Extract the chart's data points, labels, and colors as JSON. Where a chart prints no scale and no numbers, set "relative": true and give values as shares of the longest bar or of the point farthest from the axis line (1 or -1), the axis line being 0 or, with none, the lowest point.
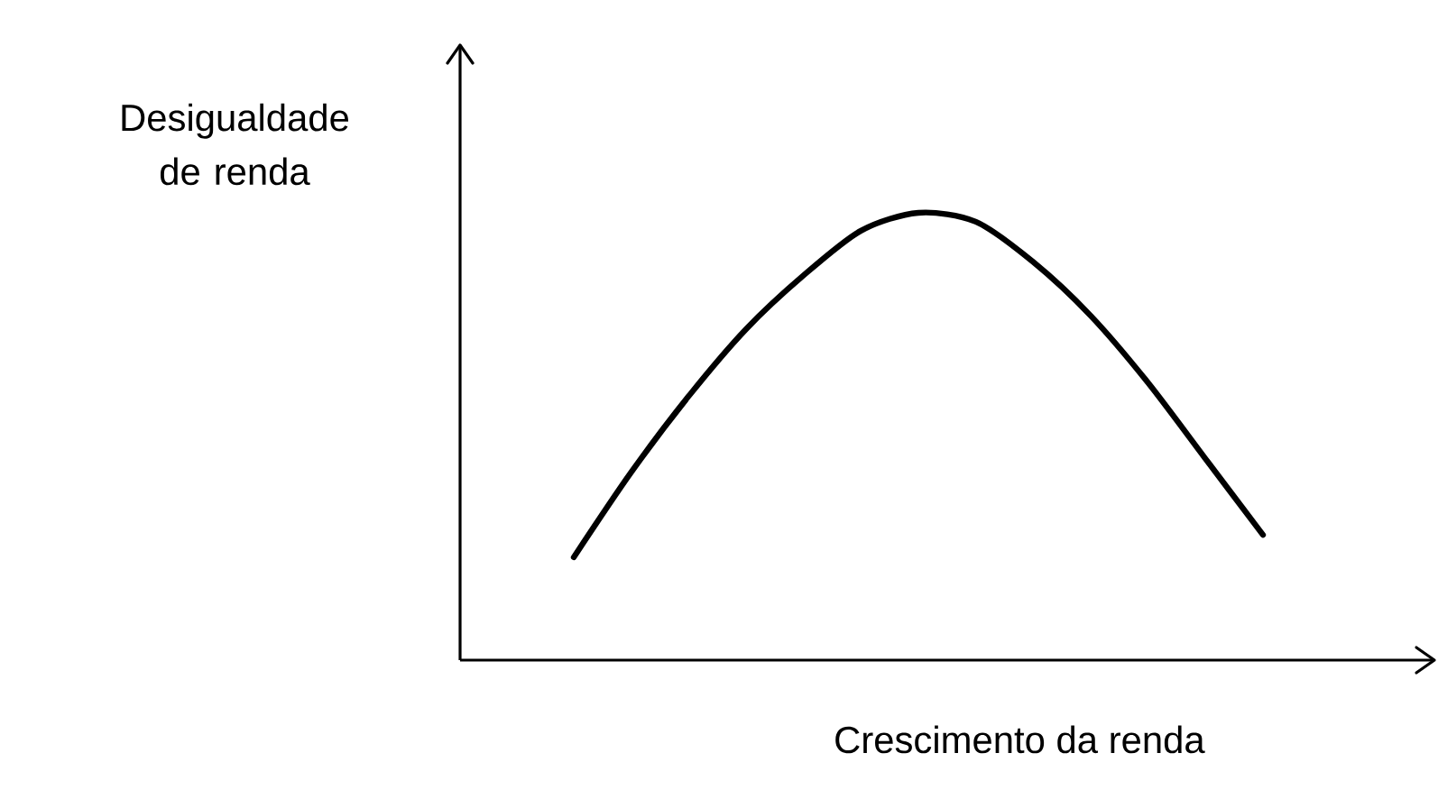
{
  "chart_data": {
    "type": "line",
    "relative": true,
    "xlabel": "Crescimento da renda",
    "annotations": [
      "Desigualdade de renda"
    ],
    "color": "#000000",
    "categories": [
      null,
      null,
      null,
      null,
      null,
      null,
      null,
      null,
      null,
      null,
      null,
      null,
      null
    ],
    "values": [
      0.23,
      0.42,
      0.59,
      0.74,
      0.86,
      0.96,
      1,
      0.98,
      0.89,
      0.77,
      0.62,
      0.45,
      0.28
    ]
  }
}
